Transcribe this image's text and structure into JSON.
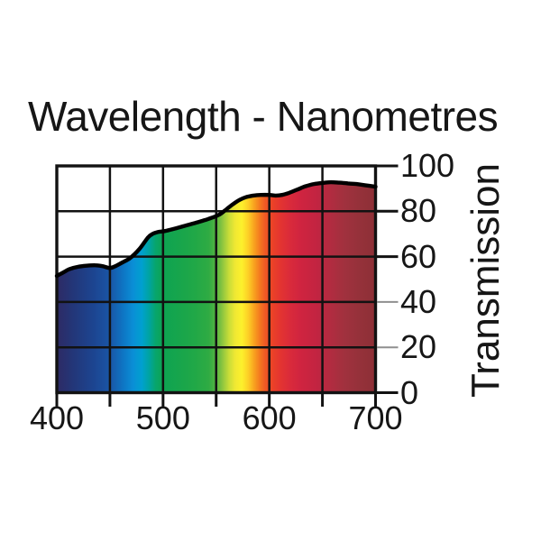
{
  "title": "Wavelength - Nanometres",
  "y_axis": {
    "title": "Transmission",
    "tick_values": [
      0,
      20,
      40,
      60,
      80,
      100
    ],
    "gray_tick_values": [
      20,
      40
    ]
  },
  "x_axis": {
    "label_values": [
      400,
      500,
      600,
      700
    ],
    "tick_values": [
      400,
      450,
      500,
      550,
      600,
      650,
      700
    ]
  },
  "colors": {
    "background": "#ffffff",
    "axis": "#121212",
    "grid": "#121212",
    "curve": "#000000",
    "text": "#161616",
    "gray_tick": "#8f8f8f"
  },
  "chart_data": {
    "type": "area",
    "title": "Wavelength - Nanometres",
    "xlabel": "Wavelength - Nanometres",
    "ylabel": "Transmission",
    "xlim": [
      400,
      700
    ],
    "ylim": [
      0,
      100
    ],
    "grid": true,
    "legend": "none",
    "x_ticks": [
      400,
      450,
      500,
      550,
      600,
      650,
      700
    ],
    "x_tick_labels_shown": [
      "400",
      "500",
      "600",
      "700"
    ],
    "y_ticks": [
      0,
      20,
      40,
      60,
      80,
      100
    ],
    "fill": "visible-spectrum-gradient",
    "series": [
      {
        "name": "transmission",
        "x": [
          400,
          406,
          412,
          420,
          428,
          436,
          443,
          450,
          456,
          462,
          468,
          473,
          478,
          482,
          486,
          490,
          495,
          502,
          510,
          520,
          530,
          540,
          548,
          554,
          560,
          566,
          572,
          578,
          585,
          592,
          600,
          606,
          612,
          618,
          626,
          634,
          642,
          650,
          658,
          666,
          674,
          682,
          690,
          700
        ],
        "y": [
          51.5,
          53,
          54.5,
          55.5,
          56,
          56.2,
          55.8,
          55,
          56,
          57.5,
          59,
          61,
          63.5,
          66,
          68.5,
          70,
          70.8,
          71.3,
          72.2,
          73.5,
          74.8,
          76.2,
          77.5,
          78.8,
          81,
          83.2,
          85,
          86.2,
          86.9,
          87.2,
          87.2,
          86.9,
          87.2,
          88,
          89.5,
          91,
          92,
          92.5,
          92.8,
          92.6,
          92.3,
          92,
          91.5,
          90.8
        ]
      }
    ],
    "gradient_stops": [
      {
        "nm": 400,
        "color": "#2e2a64"
      },
      {
        "nm": 415,
        "color": "#233678"
      },
      {
        "nm": 435,
        "color": "#1c4591"
      },
      {
        "nm": 450,
        "color": "#1a55a5"
      },
      {
        "nm": 462,
        "color": "#0e74c3"
      },
      {
        "nm": 472,
        "color": "#0a8fd6"
      },
      {
        "nm": 480,
        "color": "#00a0cf"
      },
      {
        "nm": 487,
        "color": "#00a4a0"
      },
      {
        "nm": 493,
        "color": "#07a56c"
      },
      {
        "nm": 500,
        "color": "#0ea452"
      },
      {
        "nm": 515,
        "color": "#17a54c"
      },
      {
        "nm": 530,
        "color": "#21a847"
      },
      {
        "nm": 543,
        "color": "#2fab43"
      },
      {
        "nm": 550,
        "color": "#55b542"
      },
      {
        "nm": 556,
        "color": "#8ec63f"
      },
      {
        "nm": 562,
        "color": "#c8dd38"
      },
      {
        "nm": 568,
        "color": "#f0e833"
      },
      {
        "nm": 574,
        "color": "#fdf12c"
      },
      {
        "nm": 580,
        "color": "#fdd026"
      },
      {
        "nm": 586,
        "color": "#f8a01f"
      },
      {
        "nm": 591,
        "color": "#f4791f"
      },
      {
        "nm": 596,
        "color": "#f05a24"
      },
      {
        "nm": 602,
        "color": "#ec4426"
      },
      {
        "nm": 610,
        "color": "#e43530"
      },
      {
        "nm": 620,
        "color": "#d92a3b"
      },
      {
        "nm": 630,
        "color": "#cf2440"
      },
      {
        "nm": 645,
        "color": "#c22441"
      },
      {
        "nm": 658,
        "color": "#b12c40"
      },
      {
        "nm": 670,
        "color": "#a1313e"
      },
      {
        "nm": 685,
        "color": "#95313a"
      },
      {
        "nm": 700,
        "color": "#8d3036"
      }
    ]
  }
}
